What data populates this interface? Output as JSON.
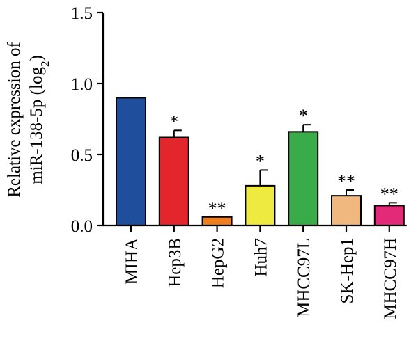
{
  "chart_data": {
    "type": "bar",
    "title": "",
    "ylabel_line1": "Relative expression of",
    "ylabel_line2": "miR-138-5p (log",
    "ylabel_sub": "2",
    "ylabel_close": ")",
    "ylim": [
      0,
      1.5
    ],
    "yticks": [
      "0.0",
      "0.5",
      "1.0",
      "1.5"
    ],
    "categories": [
      "MIHA",
      "Hep3B",
      "HepG2",
      "Huh7",
      "MHCC97L",
      "SK-Hep1",
      "MHCC97H"
    ],
    "values": [
      0.9,
      0.62,
      0.06,
      0.28,
      0.66,
      0.21,
      0.14
    ],
    "errors": [
      0.0,
      0.05,
      0.0,
      0.11,
      0.05,
      0.04,
      0.02
    ],
    "significance": [
      "",
      "*",
      "**",
      "*",
      "*",
      "**",
      "**"
    ],
    "colors": [
      "#1f4e9c",
      "#e2262b",
      "#f07d1e",
      "#eeea3f",
      "#3aab49",
      "#f0b87e",
      "#e22a78"
    ]
  }
}
